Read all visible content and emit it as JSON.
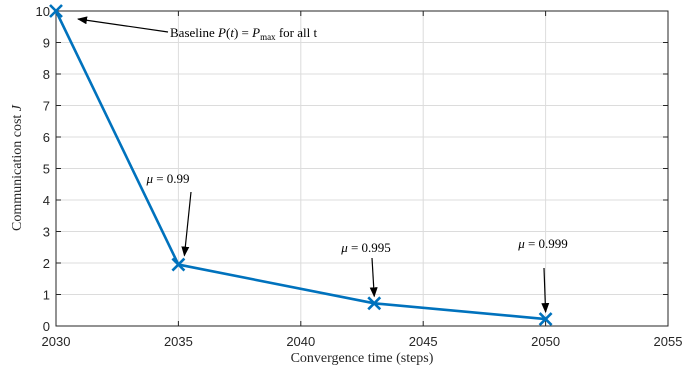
{
  "chart_data": {
    "type": "line",
    "xlabel": "Convergence time (steps)",
    "ylabel": "Communication cost J",
    "xlim": [
      2030,
      2055
    ],
    "ylim": [
      0,
      10
    ],
    "xticks": [
      2030,
      2035,
      2040,
      2045,
      2050,
      2055
    ],
    "yticks": [
      0,
      1,
      2,
      3,
      4,
      5,
      6,
      7,
      8,
      9,
      10
    ],
    "grid": true,
    "series": [
      {
        "color": "#0072bd",
        "marker": "x",
        "x": [
          2030,
          2035,
          2043,
          2050
        ],
        "y": [
          10,
          1.95,
          0.72,
          0.22
        ]
      }
    ],
    "annotations": [
      {
        "text": "Baseline P(t) = Pmax for all t",
        "point": [
          2030,
          10
        ]
      },
      {
        "text": "μ = 0.99",
        "point": [
          2035,
          1.95
        ]
      },
      {
        "text": "μ = 0.995",
        "point": [
          2043,
          0.72
        ]
      },
      {
        "text": "μ = 0.999",
        "point": [
          2050,
          0.22
        ]
      }
    ]
  }
}
